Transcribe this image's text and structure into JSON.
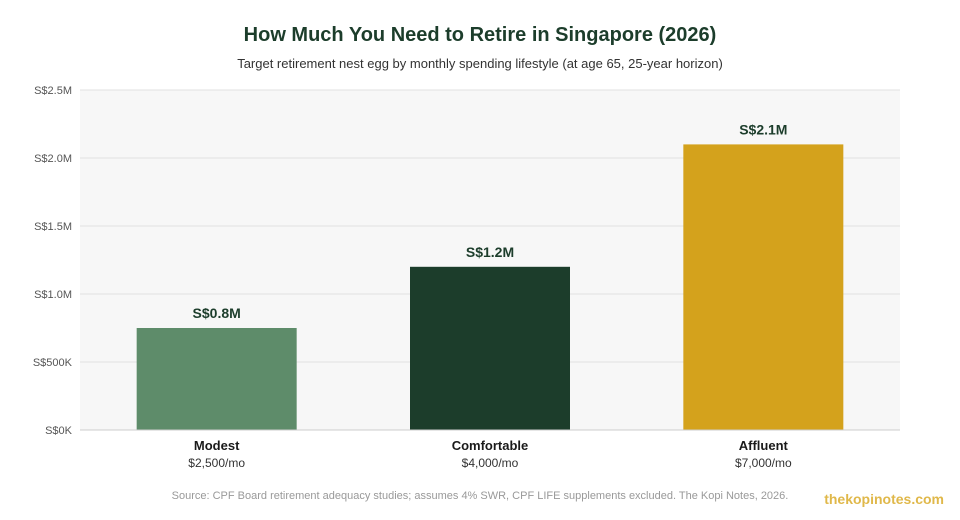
{
  "chart_data": {
    "type": "bar",
    "title": "How Much You Need to Retire in Singapore (2026)",
    "subtitle": "Target retirement nest egg by monthly spending lifestyle (at age 65, 25-year horizon)",
    "categories": [
      "Modest",
      "Comfortable",
      "Affluent"
    ],
    "category_sublabels": [
      "$2,500/mo",
      "$4,000/mo",
      "$7,000/mo"
    ],
    "values": [
      750000,
      1200000,
      2100000
    ],
    "value_labels": [
      "S$0.8M",
      "S$1.2M",
      "S$2.1M"
    ],
    "bar_colors": [
      "#5e8c6a",
      "#1c3d2b",
      "#d4a21c"
    ],
    "ylim": [
      0,
      2500000
    ],
    "yticks": [
      0,
      500000,
      1000000,
      1500000,
      2000000,
      2500000
    ],
    "ytick_labels": [
      "S$0K",
      "S$500K",
      "S$1.0M",
      "S$1.5M",
      "S$2.0M",
      "S$2.5M"
    ],
    "xlabel": "",
    "ylabel": "",
    "grid": true,
    "legend": "none"
  },
  "footer": {
    "source": "Source: CPF Board retirement adequacy studies; assumes 4% SWR, CPF LIFE supplements excluded. The Kopi Notes, 2026.",
    "brand": "thekopinotes.com"
  }
}
